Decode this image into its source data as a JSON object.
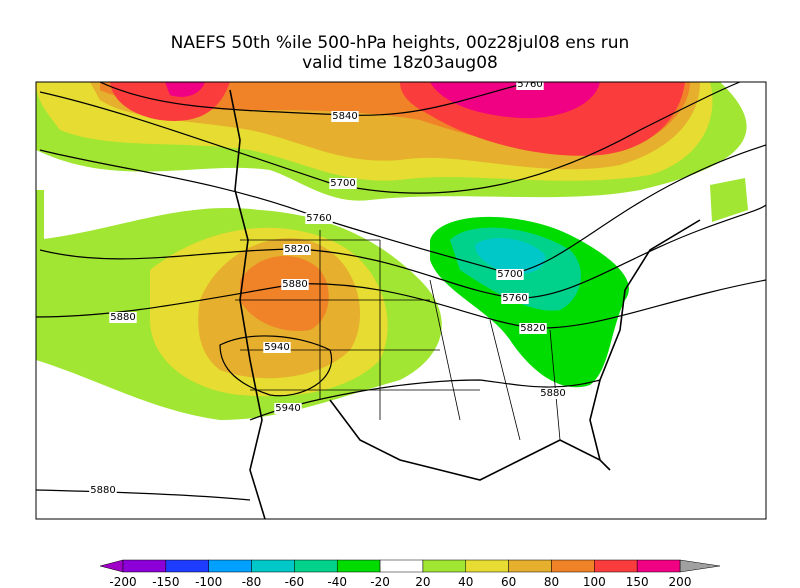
{
  "header": {
    "title": "NAEFS 50th %ile 500-hPa heights, 00z28jul08 ens run",
    "subtitle": "valid time 18z03aug08"
  },
  "map": {
    "contour_labels": [
      5760,
      5840,
      5700,
      5760,
      5820,
      5880,
      5700,
      5760,
      5820,
      5940,
      5880,
      5880,
      5940,
      5880
    ]
  },
  "colorbar": {
    "labels": [
      -200,
      -150,
      -100,
      -80,
      -60,
      -40,
      -20,
      20,
      40,
      60,
      80,
      100,
      150,
      200
    ],
    "colors": [
      "#8c00d7",
      "#1e3cff",
      "#00a0ff",
      "#00c8c8",
      "#00d28c",
      "#00dc00",
      "#ffffff",
      "#a0e632",
      "#e6dc32",
      "#e6af2d",
      "#f08228",
      "#fa3c3c",
      "#f00082"
    ],
    "under_color": "#a000c8",
    "over_color": "#a0a0a0"
  }
}
